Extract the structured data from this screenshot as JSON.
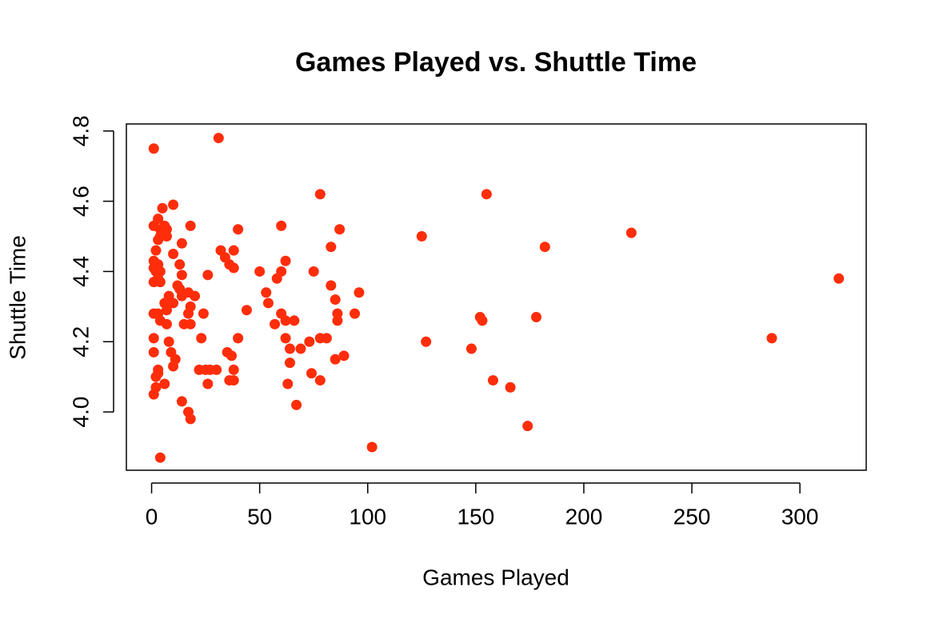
{
  "chart_data": {
    "type": "scatter",
    "title": "Games Played vs. Shuttle Time",
    "x_label": "Games Played",
    "y_label": "Shuttle Time",
    "color": "#ff2d0a",
    "xlim": [
      -11.68,
      330.68
    ],
    "ylim": [
      3.834,
      4.82
    ],
    "xticks": [
      0,
      50,
      100,
      150,
      200,
      250,
      300
    ],
    "yticks": [
      {
        "value": 4,
        "label": "4.0"
      },
      4.2,
      4.4,
      4.6,
      4.8
    ],
    "x": [
      1,
      31,
      78,
      155,
      10,
      5,
      3,
      18,
      60,
      1,
      6,
      4,
      7,
      40,
      87,
      4,
      7,
      125,
      222,
      3,
      14,
      83,
      182,
      32,
      38,
      2,
      10,
      34,
      1,
      62,
      13,
      3,
      36,
      38,
      1,
      2,
      4,
      50,
      60,
      75,
      14,
      26,
      58,
      318,
      1,
      4,
      3,
      12,
      83,
      13,
      53,
      96,
      17,
      14,
      8,
      20,
      85,
      54,
      6,
      10,
      18,
      7,
      44,
      1,
      3,
      17,
      24,
      60,
      86,
      94,
      152,
      178,
      153,
      4,
      62,
      66,
      86,
      15,
      18,
      57,
      7,
      1,
      23,
      40,
      62,
      78,
      81,
      287,
      8,
      73,
      127,
      64,
      69,
      148,
      1,
      9,
      35,
      37,
      89,
      11,
      85,
      64,
      10,
      22,
      27,
      30,
      38,
      3,
      25,
      2,
      3,
      74,
      36,
      38,
      78,
      158,
      6,
      26,
      63,
      2,
      166,
      1,
      14,
      67,
      17,
      18,
      174,
      102,
      4
    ],
    "y": [
      4.75,
      4.78,
      4.62,
      4.62,
      4.59,
      4.58,
      4.55,
      4.53,
      4.53,
      4.53,
      4.53,
      4.52,
      4.52,
      4.52,
      4.52,
      4.5,
      4.5,
      4.5,
      4.51,
      4.49,
      4.48,
      4.47,
      4.47,
      4.46,
      4.46,
      4.46,
      4.45,
      4.44,
      4.43,
      4.43,
      4.42,
      4.42,
      4.42,
      4.41,
      4.41,
      4.4,
      4.4,
      4.4,
      4.4,
      4.4,
      4.39,
      4.39,
      4.38,
      4.38,
      4.37,
      4.37,
      4.38,
      4.36,
      4.36,
      4.35,
      4.34,
      4.34,
      4.34,
      4.33,
      4.33,
      4.33,
      4.32,
      4.31,
      4.31,
      4.31,
      4.3,
      4.29,
      4.29,
      4.28,
      4.28,
      4.28,
      4.28,
      4.28,
      4.28,
      4.28,
      4.27,
      4.27,
      4.26,
      4.26,
      4.26,
      4.26,
      4.26,
      4.25,
      4.25,
      4.25,
      4.25,
      4.21,
      4.21,
      4.21,
      4.21,
      4.21,
      4.21,
      4.21,
      4.2,
      4.2,
      4.2,
      4.18,
      4.18,
      4.18,
      4.17,
      4.17,
      4.17,
      4.16,
      4.16,
      4.15,
      4.15,
      4.14,
      4.13,
      4.12,
      4.12,
      4.12,
      4.12,
      4.12,
      4.12,
      4.1,
      4.11,
      4.11,
      4.09,
      4.09,
      4.09,
      4.09,
      4.08,
      4.08,
      4.08,
      4.07,
      4.07,
      4.05,
      4.03,
      4.02,
      4,
      3.98,
      3.96,
      3.9,
      3.87
    ]
  }
}
